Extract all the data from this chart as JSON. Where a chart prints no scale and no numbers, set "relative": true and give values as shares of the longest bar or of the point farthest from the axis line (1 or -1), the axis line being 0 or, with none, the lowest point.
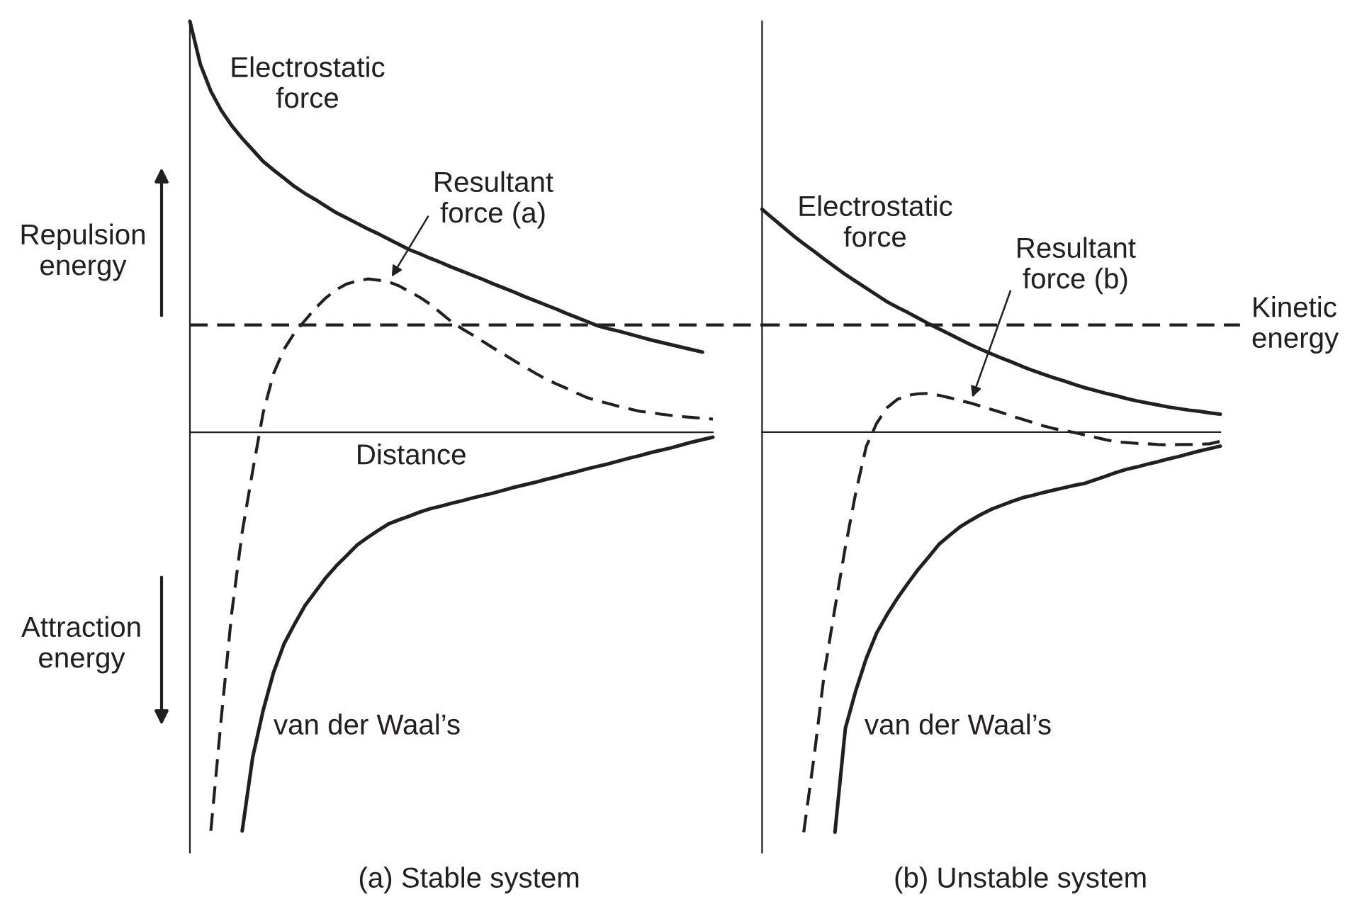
{
  "chart_data": [
    {
      "type": "line",
      "title": "(a) Stable system",
      "xlabel": "Distance",
      "relative": true,
      "categories": [
        null,
        null,
        null,
        null,
        null,
        null,
        null,
        null,
        null,
        null,
        null,
        null,
        null,
        null,
        null,
        null,
        null,
        null,
        null,
        null,
        null,
        null,
        null,
        null,
        null,
        null,
        null,
        null,
        null,
        null,
        null,
        null,
        null,
        null,
        null,
        null,
        null,
        null,
        null,
        null,
        null,
        null,
        null,
        null,
        null,
        null,
        null,
        null,
        null,
        null,
        null
      ],
      "series": [
        {
          "name": "Electrostatic\nforce",
          "color": "#231f20",
          "line_style": "solid",
          "values": [
            1.0,
            0.895,
            0.83,
            0.783,
            0.746,
            0.715,
            0.687,
            0.659,
            0.638,
            0.618,
            0.598,
            0.581,
            0.566,
            0.55,
            0.534,
            0.521,
            0.508,
            0.495,
            0.483,
            0.47,
            0.457,
            0.444,
            0.434,
            0.423,
            0.413,
            0.402,
            0.392,
            0.382,
            0.372,
            0.361,
            0.351,
            0.341,
            0.33,
            0.32,
            0.31,
            0.3,
            0.289,
            0.279,
            0.269,
            0.259,
            0.252,
            0.246,
            0.239,
            0.232,
            0.225,
            0.219,
            0.213,
            0.207,
            0.201,
            0.195,
            null
          ]
        },
        {
          "name": "Resultant\nforce (a)",
          "color": "#231f20",
          "line_style": "dashed",
          "values": [
            null,
            null,
            -0.97,
            -0.695,
            -0.439,
            -0.243,
            -0.094,
            0.047,
            0.143,
            0.202,
            0.242,
            0.272,
            0.302,
            0.327,
            0.347,
            0.361,
            0.368,
            0.373,
            0.37,
            0.366,
            0.356,
            0.342,
            0.328,
            0.311,
            0.29,
            0.269,
            0.252,
            0.237,
            0.221,
            0.205,
            0.19,
            0.174,
            0.159,
            0.144,
            0.13,
            0.118,
            0.107,
            0.095,
            0.084,
            0.076,
            0.07,
            0.063,
            0.057,
            0.051,
            0.048,
            0.044,
            0.041,
            0.038,
            0.036,
            0.034,
            0.032
          ]
        },
        {
          "name": "van der Waal’s",
          "color": "#231f20",
          "line_style": "solid",
          "values": [
            null,
            null,
            null,
            null,
            null,
            -0.97,
            -0.791,
            -0.677,
            -0.584,
            -0.515,
            -0.467,
            -0.422,
            -0.388,
            -0.354,
            -0.325,
            -0.3,
            -0.274,
            -0.256,
            -0.239,
            -0.223,
            -0.213,
            -0.204,
            -0.194,
            -0.186,
            -0.18,
            -0.173,
            -0.167,
            -0.16,
            -0.154,
            -0.148,
            -0.141,
            -0.134,
            -0.128,
            -0.122,
            -0.115,
            -0.109,
            -0.102,
            -0.096,
            -0.089,
            -0.083,
            -0.077,
            -0.07,
            -0.063,
            -0.057,
            -0.05,
            -0.044,
            -0.038,
            -0.031,
            -0.024,
            -0.018,
            -0.012
          ]
        }
      ],
      "ref_lines": [
        {
          "axis": "y",
          "value": 0.261,
          "color": "#231f20",
          "line_style": "dashed"
        }
      ],
      "annotations": [
        "Repulsion\nenergy",
        "Attraction\nenergy"
      ]
    },
    {
      "type": "line",
      "title": "(b) Unstable system",
      "relative": true,
      "categories": [
        null,
        null,
        null,
        null,
        null,
        null,
        null,
        null,
        null,
        null,
        null,
        null,
        null,
        null,
        null,
        null,
        null,
        null,
        null,
        null,
        null,
        null,
        null,
        null,
        null,
        null,
        null,
        null,
        null,
        null,
        null,
        null,
        null,
        null,
        null,
        null,
        null,
        null,
        null,
        null,
        null,
        null,
        null,
        null,
        null
      ],
      "series": [
        {
          "name": "Electrostatic\nforce",
          "color": "#231f20",
          "line_style": "solid",
          "values": [
            0.557,
            0.535,
            0.513,
            0.491,
            0.471,
            0.452,
            0.432,
            0.413,
            0.394,
            0.377,
            0.36,
            0.343,
            0.326,
            0.312,
            0.299,
            0.285,
            0.271,
            0.258,
            0.245,
            0.232,
            0.219,
            0.207,
            0.196,
            0.185,
            0.175,
            0.164,
            0.154,
            0.145,
            0.136,
            0.128,
            0.119,
            0.111,
            0.104,
            0.097,
            0.091,
            0.084,
            0.078,
            0.073,
            0.068,
            0.063,
            0.059,
            0.055,
            0.052,
            0.048,
            0.045
          ]
        },
        {
          "name": "Resultant\nforce (b)",
          "color": "#231f20",
          "line_style": "dashed",
          "values": [
            null,
            null,
            null,
            null,
            -1.0,
            -0.81,
            -0.598,
            -0.439,
            -0.287,
            -0.151,
            -0.036,
            0.022,
            0.061,
            0.082,
            0.092,
            0.096,
            0.097,
            0.092,
            0.086,
            0.079,
            0.073,
            0.065,
            0.057,
            0.049,
            0.04,
            0.032,
            0.024,
            0.016,
            0.009,
            0.004,
            -0.001,
            -0.007,
            -0.013,
            -0.019,
            -0.024,
            -0.026,
            -0.028,
            -0.029,
            -0.031,
            -0.032,
            -0.031,
            -0.031,
            -0.03,
            -0.029,
            -0.023
          ]
        },
        {
          "name": "van der Waal’s",
          "color": "#231f20",
          "line_style": "solid",
          "values": [
            null,
            null,
            null,
            null,
            null,
            null,
            null,
            -1.0,
            -0.74,
            -0.646,
            -0.566,
            -0.502,
            -0.456,
            -0.415,
            -0.378,
            -0.343,
            -0.312,
            -0.28,
            -0.258,
            -0.237,
            -0.221,
            -0.206,
            -0.193,
            -0.183,
            -0.173,
            -0.164,
            -0.158,
            -0.151,
            -0.145,
            -0.139,
            -0.133,
            -0.128,
            -0.119,
            -0.11,
            -0.101,
            -0.093,
            -0.087,
            -0.08,
            -0.074,
            -0.067,
            -0.061,
            -0.054,
            -0.047,
            -0.041,
            -0.035
          ]
        }
      ],
      "ref_lines": [
        {
          "axis": "y",
          "value": 0.268,
          "label": "Kinetic\nenergy",
          "color": "#231f20",
          "line_style": "dashed"
        }
      ]
    }
  ]
}
